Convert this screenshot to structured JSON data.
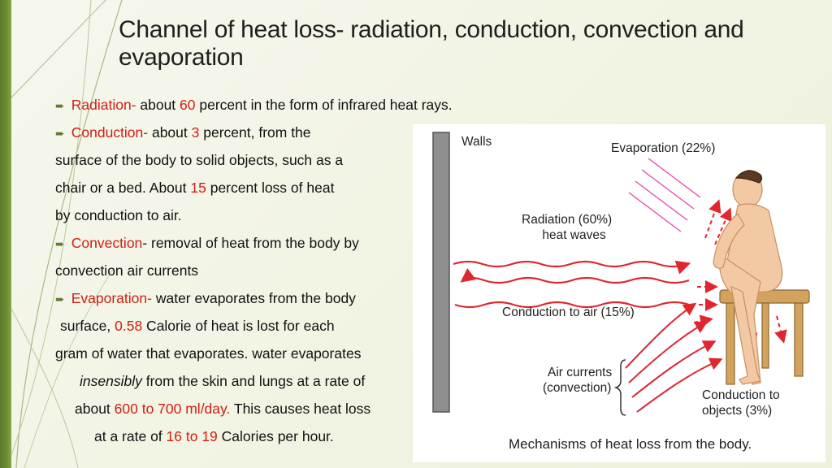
{
  "slide": {
    "title_line1": "Channel of heat loss- radiation, conduction, convection and",
    "title_line2": "evaporation"
  },
  "bullets": {
    "radiation": {
      "label": "Radiation-",
      "t1": " about ",
      "n1": "60",
      "t2": " percent in the form of infrared heat rays."
    },
    "conduction": {
      "label": "Conduction-",
      "t1": " about ",
      "n1": "3",
      "t2": " percent, from the",
      "l2": "surface of the body to solid objects, such as a",
      "l3a": "chair or a bed. About ",
      "l3n": "15",
      "l3b": " percent loss of heat",
      "l4": "by conduction to air."
    },
    "convection": {
      "label": "Convection",
      "t1": "- removal of heat from the body by",
      "l2": "convection air currents"
    },
    "evaporation": {
      "label": "Evaporation-",
      "t1": " water evaporates from the body",
      "l2a": " surface, ",
      "l2n": "0.58",
      "l2b": " Calorie of heat is lost for each",
      "l3": "gram of water that evaporates. water evaporates",
      "l4i": "insensibly",
      "l4b": " from the skin and lungs at a rate of",
      "l5a": "about ",
      "l5n": "600 to 700 ml/day.",
      "l5b": " This causes heat loss",
      "l6a": "at a  rate of ",
      "l6n": "16 to 19",
      "l6b": " Calories per hour."
    }
  },
  "figure": {
    "walls": "Walls",
    "evaporation": "Evaporation (22%)",
    "radiation_l1": "Radiation (60%)",
    "radiation_l2": "heat waves",
    "conduction_air": "Conduction to air (15%)",
    "air_currents_l1": "Air currents",
    "air_currents_l2": "(convection)",
    "conduction_objects_l1": "Conduction to",
    "conduction_objects_l2": "objects (3%)",
    "caption": "Mechanisms of heat loss from the body."
  },
  "colors": {
    "accent_green": "#5e7c2c",
    "highlight_red": "#d21e12",
    "arrow_red": "#e0262f",
    "evap_pink": "#e64aa8"
  }
}
